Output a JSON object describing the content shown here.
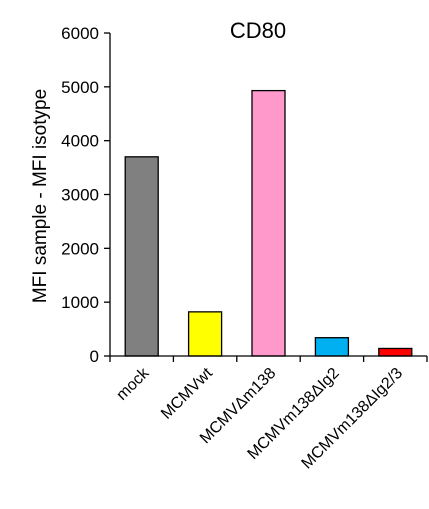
{
  "chart_data": {
    "type": "bar",
    "title": "CD80",
    "xlabel": "",
    "ylabel": "MFI sample - MFI isotype",
    "ylim": [
      0,
      6000
    ],
    "yticks": [
      0,
      1000,
      2000,
      3000,
      4000,
      5000,
      6000
    ],
    "grid": false,
    "legend": "none",
    "categories": [
      "mock",
      "MCMVwt",
      "MCMVΔm138",
      "MCMVm138ΔIg2",
      "MCMVm138ΔIg2/3"
    ],
    "values": [
      3700,
      820,
      4930,
      340,
      140
    ],
    "colors": [
      "#808080",
      "#ffff00",
      "#ff99cc",
      "#00b0f0",
      "#ff0000"
    ]
  }
}
